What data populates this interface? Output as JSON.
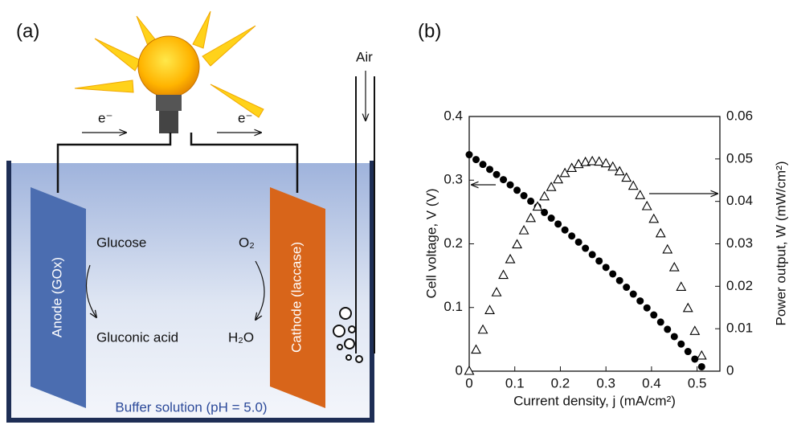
{
  "diagram": {
    "panel_label": "(a)",
    "electron_left": "e⁻",
    "electron_right": "e⁻",
    "air": "Air",
    "glucose": "Glucose",
    "gluconic_acid": "Gluconic acid",
    "oxygen": "O₂",
    "water": "H₂O",
    "anode": "Anode  (GOx)",
    "cathode": "Cathode (laccase)",
    "buffer": "Buffer solution (pH = 5.0)"
  },
  "chart_data": {
    "type": "scatter",
    "panel_label": "(b)",
    "x_label": "Current density, j (mA/cm²)",
    "y_label": "Cell voltage, V (V)",
    "y2_label": "Power output, W (mW/cm²)",
    "x": [
      0,
      0.015,
      0.03,
      0.045,
      0.06,
      0.075,
      0.09,
      0.105,
      0.12,
      0.135,
      0.15,
      0.165,
      0.18,
      0.195,
      0.21,
      0.225,
      0.24,
      0.255,
      0.27,
      0.285,
      0.3,
      0.315,
      0.33,
      0.345,
      0.36,
      0.375,
      0.39,
      0.405,
      0.42,
      0.435,
      0.45,
      0.465,
      0.48,
      0.495,
      0.51
    ],
    "series": [
      {
        "marker": "circle",
        "color": "#000000",
        "values": [
          0.34,
          0.3324,
          0.3247,
          0.3169,
          0.3089,
          0.3008,
          0.2926,
          0.2842,
          0.2757,
          0.267,
          0.2583,
          0.2493,
          0.2403,
          0.2311,
          0.2218,
          0.2123,
          0.2027,
          0.193,
          0.1831,
          0.1731,
          0.163,
          0.1527,
          0.1423,
          0.1318,
          0.1211,
          0.1103,
          0.0994,
          0.0883,
          0.0771,
          0.0657,
          0.0543,
          0.0426,
          0.0309,
          0.019,
          0.007
        ]
      },
      {
        "marker": "triangle",
        "color": "#000000",
        "axis": "y2",
        "values": [
          0,
          0.005,
          0.0097,
          0.0143,
          0.0185,
          0.0226,
          0.0263,
          0.0298,
          0.0331,
          0.036,
          0.0387,
          0.0411,
          0.0433,
          0.0451,
          0.0466,
          0.0478,
          0.0487,
          0.0492,
          0.0494,
          0.0493,
          0.0489,
          0.0481,
          0.047,
          0.0455,
          0.0436,
          0.0414,
          0.0388,
          0.0358,
          0.0324,
          0.0286,
          0.0244,
          0.0198,
          0.0148,
          0.0094,
          0.0036
        ]
      }
    ],
    "xlim": [
      0,
      0.55
    ],
    "xticks": [
      0,
      0.1,
      0.2,
      0.3,
      0.4,
      0.5
    ],
    "ylim": [
      0,
      0.4
    ],
    "yticks": [
      0,
      0.1,
      0.2,
      0.3,
      0.4
    ],
    "y2lim": [
      0,
      0.06
    ],
    "y2ticks": [
      0,
      0.01,
      0.02,
      0.03,
      0.04,
      0.05,
      0.06
    ]
  }
}
